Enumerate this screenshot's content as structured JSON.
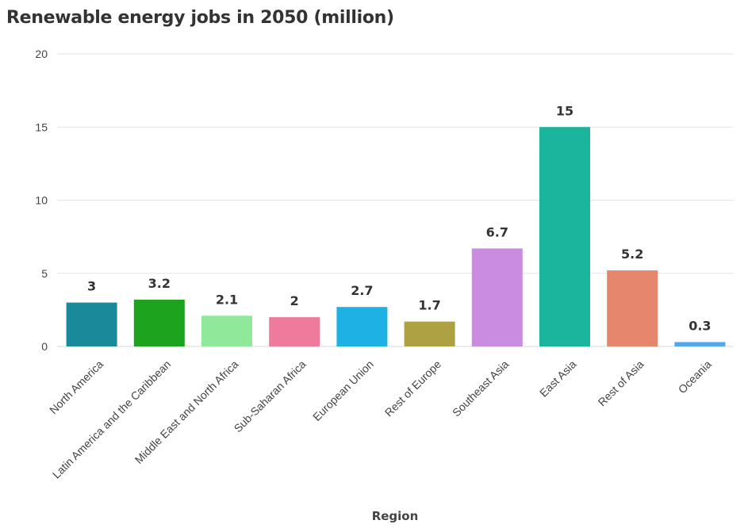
{
  "chart_data": {
    "type": "bar",
    "title": "Renewable energy jobs in 2050 (million)",
    "xlabel": "Region",
    "ylabel": "",
    "ylim": [
      0,
      20
    ],
    "yticks": [
      0,
      5,
      10,
      15,
      20
    ],
    "grid": true,
    "legend": "none",
    "categories": [
      "North America",
      "Latin America and the Caribbean",
      "Middle East and North Africa",
      "Sub-Saharan Africa",
      "European Union",
      "Rest of Europe",
      "Southeast Asia",
      "East Asia",
      "Rest of Asia",
      "Oceania"
    ],
    "values": [
      3,
      3.2,
      2.1,
      2,
      2.7,
      1.7,
      6.7,
      15,
      5.2,
      0.3
    ],
    "colors": [
      "#1a8a9a",
      "#1ea31e",
      "#90e89b",
      "#ee7b9b",
      "#1eb2e4",
      "#aea143",
      "#c98ce0",
      "#1ab59c",
      "#e5866d",
      "#4fa8ee"
    ]
  }
}
